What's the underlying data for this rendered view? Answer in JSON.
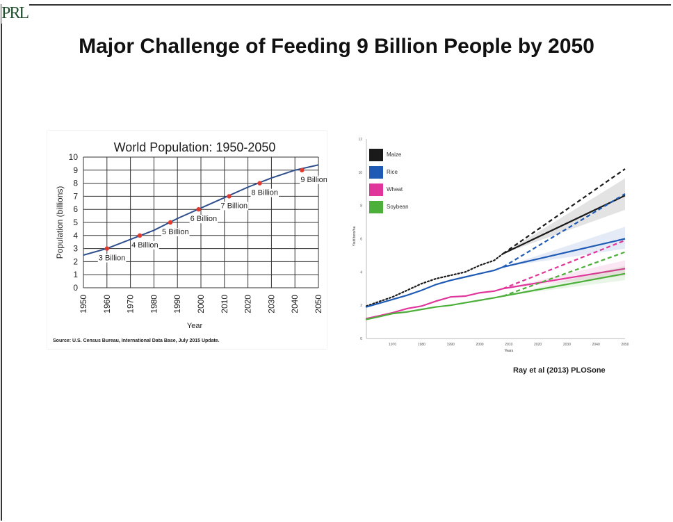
{
  "logo": "PRL",
  "slide_title": "Major Challenge of Feeding 9 Billion People by 2050",
  "citation": "Ray et al (2013) PLOSone",
  "chart_data": [
    {
      "type": "line",
      "title": "World Population: 1950-2050",
      "xlabel": "Year",
      "ylabel": "Population (billions)",
      "xlim": [
        1950,
        2050
      ],
      "ylim": [
        0,
        10
      ],
      "x_ticks": [
        1950,
        1960,
        1970,
        1980,
        1990,
        2000,
        2010,
        2020,
        2030,
        2040,
        2050
      ],
      "y_ticks": [
        0,
        1,
        2,
        3,
        4,
        5,
        6,
        7,
        8,
        9,
        10
      ],
      "grid": true,
      "color": "#2e4e8c",
      "series": [
        {
          "x": [
            1950,
            1960,
            1970,
            1980,
            1990,
            2000,
            2010,
            2020,
            2030,
            2040,
            2050
          ],
          "y": [
            2.5,
            3.0,
            3.7,
            4.4,
            5.3,
            6.1,
            6.9,
            7.7,
            8.4,
            9.0,
            9.4
          ]
        }
      ],
      "milestones": [
        {
          "year": 1960,
          "value": 3,
          "label": "3 Billion"
        },
        {
          "year": 1974,
          "value": 4,
          "label": "4 Billion"
        },
        {
          "year": 1987,
          "value": 5,
          "label": "5 Billion"
        },
        {
          "year": 1999,
          "value": 6,
          "label": "6 Billion"
        },
        {
          "year": 2012,
          "value": 7,
          "label": "7 Billion"
        },
        {
          "year": 2025,
          "value": 8,
          "label": "8 Billion"
        },
        {
          "year": 2043,
          "value": 9,
          "label": "9 Billion"
        }
      ],
      "milestone_color": "#e23b2e",
      "source": "Source: U.S. Census Bureau, International Data Base, July 2015 Update."
    },
    {
      "type": "line",
      "title": "",
      "xlabel": "Years",
      "ylabel": "Yield tons/ha",
      "xlim": [
        1961,
        2050
      ],
      "ylim": [
        0,
        12
      ],
      "x_ticks": [
        1970,
        1980,
        1990,
        2000,
        2010,
        2020,
        2030,
        2040,
        2050
      ],
      "y_ticks": [
        0,
        2,
        4,
        6,
        8,
        10,
        12
      ],
      "legend": "top-left",
      "series": [
        {
          "name": "Maize",
          "color": "#1a1a1a",
          "observed": {
            "x": [
              1961,
              1965,
              1970,
              1975,
              1980,
              1985,
              1990,
              1995,
              2000,
              2005,
              2008
            ],
            "y": [
              1.95,
              2.2,
              2.5,
              2.9,
              3.3,
              3.6,
              3.8,
              4.0,
              4.4,
              4.7,
              5.1
            ]
          },
          "projection_trend": {
            "x": [
              2008,
              2050
            ],
            "y": [
              5.1,
              8.6
            ]
          },
          "projection_target": {
            "x": [
              2008,
              2050
            ],
            "y": [
              5.1,
              10.2
            ]
          }
        },
        {
          "name": "Rice",
          "color": "#1f5bb5",
          "observed": {
            "x": [
              1961,
              1965,
              1970,
              1975,
              1980,
              1985,
              1990,
              1995,
              2000,
              2005,
              2008
            ],
            "y": [
              1.9,
              2.1,
              2.35,
              2.6,
              2.9,
              3.25,
              3.5,
              3.7,
              3.9,
              4.1,
              4.3
            ]
          },
          "projection_trend": {
            "x": [
              2008,
              2050
            ],
            "y": [
              4.3,
              6.0
            ]
          },
          "projection_target": {
            "x": [
              2008,
              2050
            ],
            "y": [
              4.3,
              8.7
            ]
          }
        },
        {
          "name": "Wheat",
          "color": "#e0359a",
          "observed": {
            "x": [
              1961,
              1965,
              1970,
              1975,
              1980,
              1985,
              1990,
              1995,
              2000,
              2005,
              2008
            ],
            "y": [
              1.2,
              1.35,
              1.55,
              1.8,
              1.95,
              2.25,
              2.5,
              2.55,
              2.75,
              2.85,
              3.0
            ]
          },
          "projection_trend": {
            "x": [
              2008,
              2050
            ],
            "y": [
              3.0,
              4.2
            ]
          },
          "projection_target": {
            "x": [
              2008,
              2050
            ],
            "y": [
              3.0,
              5.9
            ]
          }
        },
        {
          "name": "Soybean",
          "color": "#4caf3a",
          "observed": {
            "x": [
              1961,
              1965,
              1970,
              1975,
              1980,
              1985,
              1990,
              1995,
              2000,
              2005,
              2008
            ],
            "y": [
              1.15,
              1.3,
              1.5,
              1.6,
              1.75,
              1.9,
              2.0,
              2.15,
              2.3,
              2.45,
              2.55
            ]
          },
          "projection_trend": {
            "x": [
              2008,
              2050
            ],
            "y": [
              2.55,
              3.9
            ]
          },
          "projection_target": {
            "x": [
              2008,
              2050
            ],
            "y": [
              2.55,
              5.2
            ]
          }
        }
      ]
    }
  ]
}
